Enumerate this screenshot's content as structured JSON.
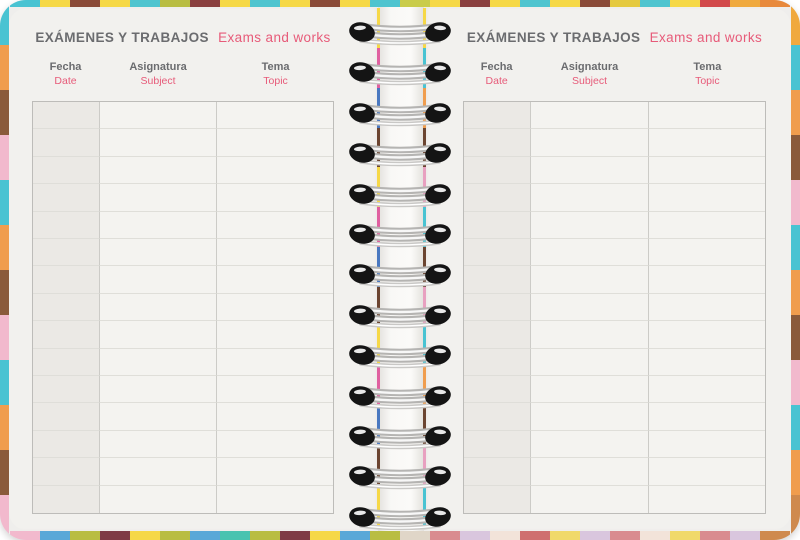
{
  "page_title": {
    "es": "EXÁMENES Y TRABAJOS",
    "en": "Exams and works"
  },
  "columns": [
    {
      "es": "Fecha",
      "en": "Date"
    },
    {
      "es": "Asignatura",
      "en": "Subject"
    },
    {
      "es": "Tema",
      "en": "Topic"
    }
  ],
  "table": {
    "row_count": 15,
    "column_count": 3,
    "cells": "empty"
  },
  "spine": {
    "ring_count": 13
  },
  "colors": {
    "page_bg": "#f2f1ee",
    "shaded_column": "#ebe9e5",
    "grid_border": "#bdbcb9",
    "row_line": "#dfded9",
    "text_gray": "#6b6c6f",
    "text_pink": "#e75b79",
    "wire_silver": "#b5b4b2",
    "hole_black": "#141414"
  },
  "cover_edges": {
    "top": [
      "#49c3d2",
      "#f6d847",
      "#8a4a38",
      "#f6d847",
      "#4fc4cf",
      "#b9bd42",
      "#8a3f3f",
      "#f6d847",
      "#4fc4cf",
      "#f6d847",
      "#8a4a38",
      "#f6d847",
      "#4fc4cf",
      "#c9cc4a",
      "#f6d847",
      "#8a3f3f",
      "#f6d847",
      "#4fc4cf",
      "#f6d847",
      "#8a4a38",
      "#e5c93f",
      "#4fc4cf",
      "#f6d847",
      "#d2484a",
      "#f0a93e",
      "#e8893c"
    ],
    "left": [
      "#49c3d2",
      "#f09d4e",
      "#8a5a3b",
      "#f2b9cd",
      "#49c3d2",
      "#f09d4e",
      "#8a5a3b",
      "#f2b9cd",
      "#49c3d2",
      "#f09d4e",
      "#8a5a3b",
      "#f2b9cd"
    ],
    "right": [
      "#f0a93e",
      "#49c3d2",
      "#f09d4e",
      "#8a5a3b",
      "#f2b9cd",
      "#49c3d2",
      "#f09d4e",
      "#8a5a3b",
      "#f2b9cd",
      "#49c3d2",
      "#f09d4e",
      "#cf8a4e"
    ],
    "bottom": [
      "#f2b9cd",
      "#5aa8d8",
      "#b9bd42",
      "#7e3b45",
      "#f6d847",
      "#b9bd42",
      "#5aa8d8",
      "#49c3b0",
      "#b9bd42",
      "#7e3b45",
      "#f6d847",
      "#5aa8d8",
      "#b9bd42",
      "#e0d6c8",
      "#d98b8f",
      "#d9c6de",
      "#f2e3d9",
      "#cf6f6f",
      "#f0d96a",
      "#d9c6de",
      "#d98b8f",
      "#f2e3d9",
      "#f0d96a",
      "#d98b8f",
      "#d9c6de",
      "#cf8a4e"
    ],
    "inner_left": [
      "#f6d847",
      "#e060a0",
      "#4a78c0",
      "#6b4430",
      "#f6d847",
      "#e060a0",
      "#4a78c0",
      "#6b4430",
      "#f6d847",
      "#e060a0",
      "#4a78c0",
      "#6b4430",
      "#f6d847"
    ],
    "inner_right": [
      "#f6d847",
      "#49c3d2",
      "#f09d4e",
      "#6b4430",
      "#e8a0c0",
      "#49c3d2",
      "#6b4430",
      "#e8a0c0",
      "#49c3d2",
      "#f09d4e",
      "#6b4430",
      "#e8a0c0",
      "#49c3d2"
    ]
  }
}
